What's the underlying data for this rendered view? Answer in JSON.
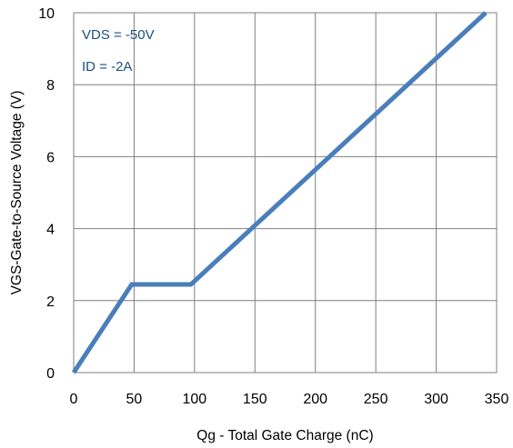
{
  "chart_data": {
    "type": "line",
    "title": "",
    "xlabel": "Qg - Total Gate Charge (nC)",
    "ylabel": "VGS-Gate-to-Source Voltage (V)",
    "xlim": [
      0,
      350
    ],
    "ylim": [
      0,
      10
    ],
    "xticks": [
      "0",
      "50",
      "100",
      "150",
      "200",
      "250",
      "300",
      "350"
    ],
    "yticks": [
      "0",
      "2",
      "4",
      "6",
      "8",
      "10"
    ],
    "grid": true,
    "legend": "none",
    "annotations": [
      "VDS = -50V",
      "ID = -2A"
    ],
    "series": [
      {
        "color": "#4a7ebb",
        "x": [
          0,
          48,
          97,
          341
        ],
        "y": [
          0,
          2.45,
          2.45,
          10
        ]
      }
    ]
  }
}
